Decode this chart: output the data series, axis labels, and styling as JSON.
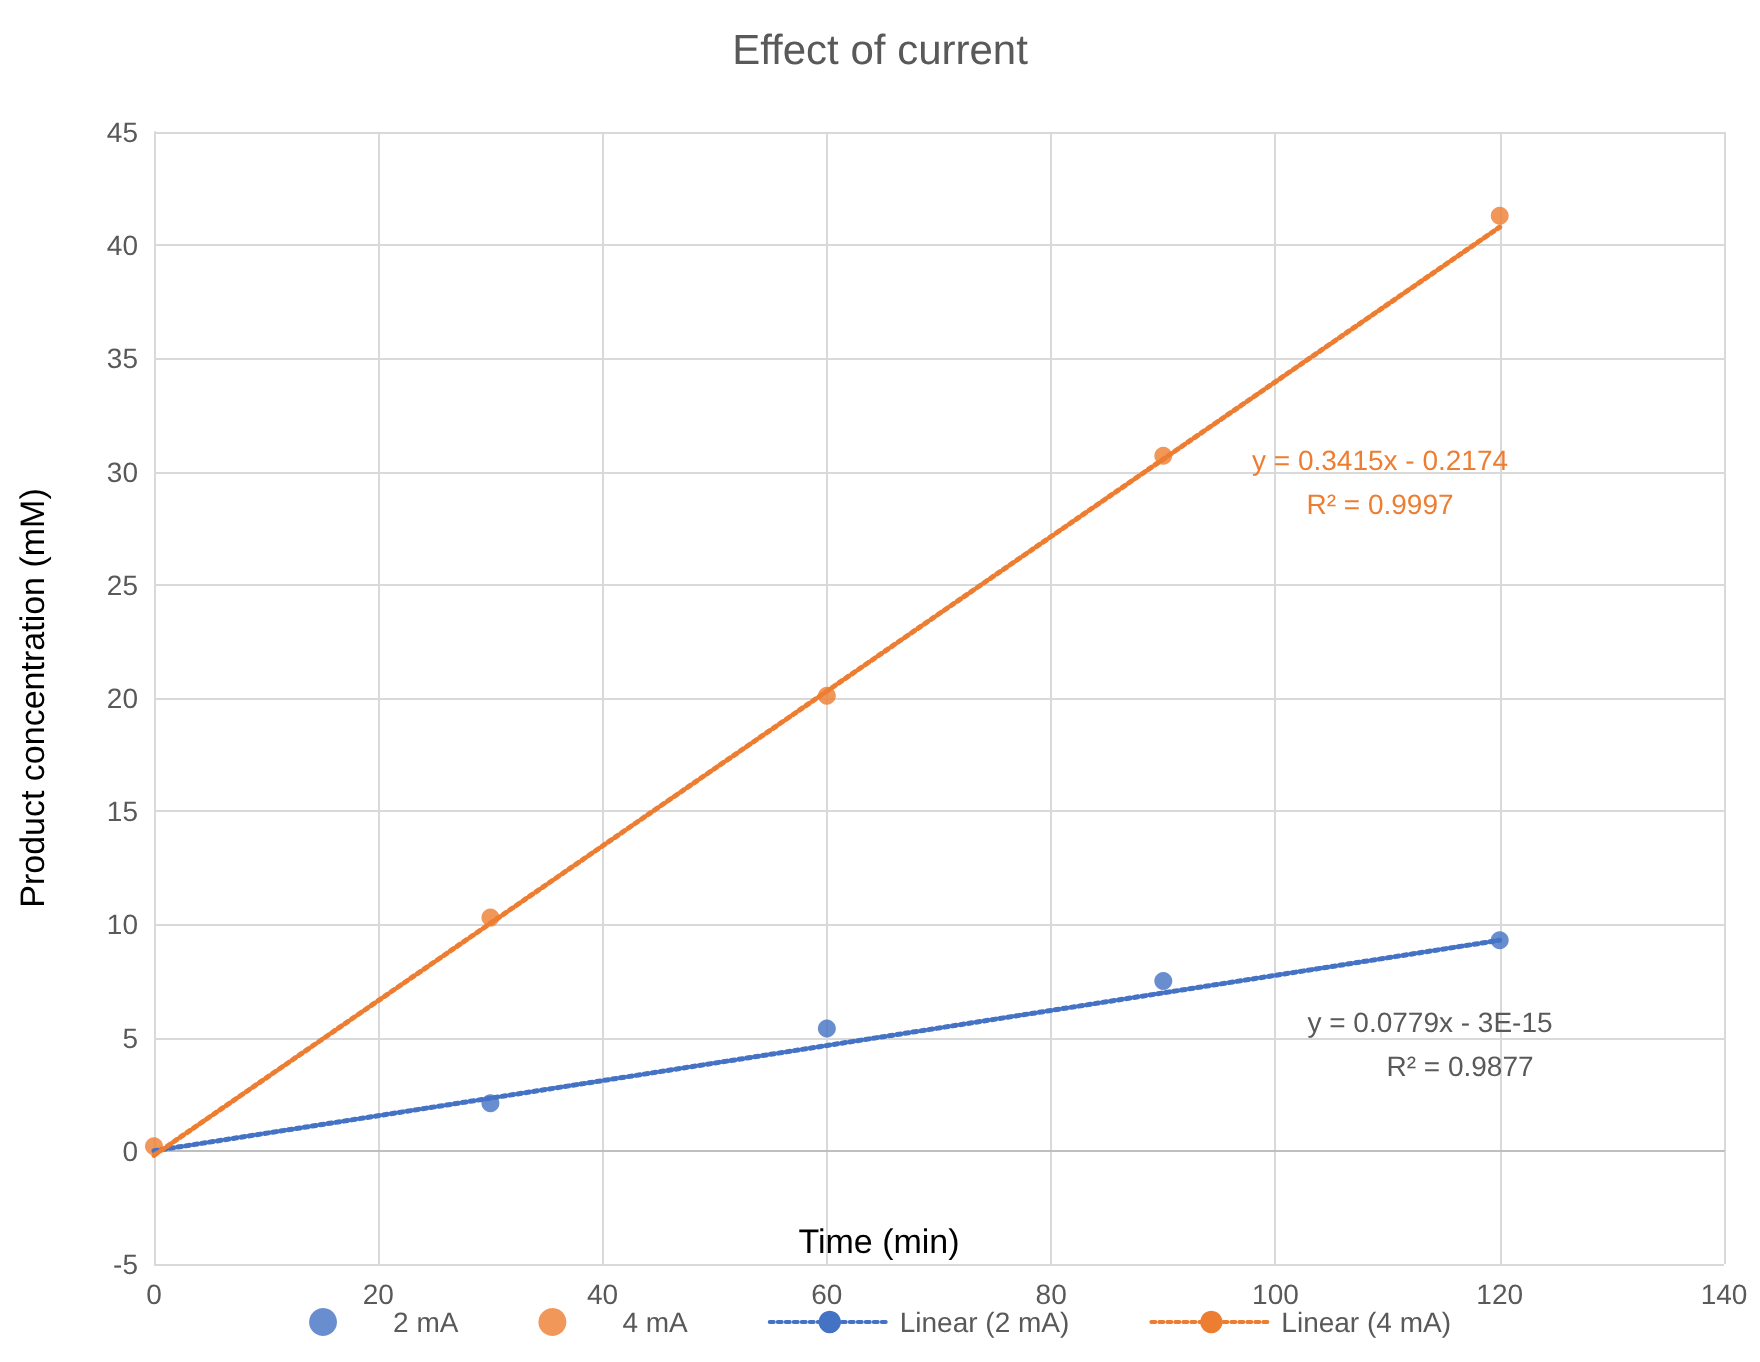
{
  "chart_data": {
    "type": "scatter",
    "title": "Effect of current",
    "xlabel": "Time (min)",
    "ylabel": "Product concentration (mM)",
    "xlim": [
      0,
      140
    ],
    "xticks": [
      0,
      20,
      40,
      60,
      80,
      100,
      120,
      140
    ],
    "ylim": [
      -5,
      45
    ],
    "yticks": [
      -5,
      0,
      5,
      10,
      15,
      20,
      25,
      30,
      35,
      40,
      45
    ],
    "grid": true,
    "legend": "bottom",
    "marker": "circle",
    "series": [
      {
        "name": "2 mA",
        "color": "#4472c4",
        "x": [
          30,
          60,
          90,
          120
        ],
        "values": [
          2.1,
          5.4,
          7.5,
          9.3
        ]
      },
      {
        "name": "4 mA",
        "color": "#ed7d31",
        "x": [
          0,
          30,
          60,
          90,
          120
        ],
        "values": [
          0.2,
          10.3,
          20.1,
          30.7,
          41.3
        ]
      },
      {
        "name": "Linear (2 mA)",
        "type": "line",
        "line_style": "dotted",
        "marker": "none",
        "color": "#4472c4",
        "x": [
          0,
          120
        ],
        "values": [
          0,
          9.3
        ]
      },
      {
        "name": "Linear (4 mA)",
        "type": "line",
        "line_style": "dotted",
        "marker": "none",
        "color": "#ed7d31",
        "x": [
          0,
          120
        ],
        "values": [
          -0.2,
          40.8
        ]
      }
    ],
    "annotations": [
      "y = 0.3415x - 0.2174",
      "R² = 0.9997",
      "y = 0.0779x - 3E-15",
      "R² = 0.9877"
    ]
  }
}
